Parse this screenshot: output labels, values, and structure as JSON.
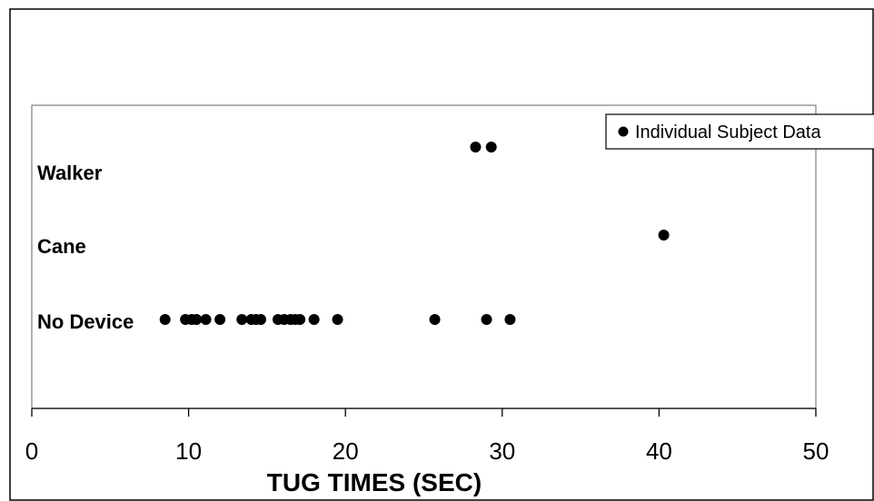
{
  "chart_data": {
    "type": "scatter",
    "title": "",
    "xlabel": "TUG TIMES (SEC)",
    "ylabel": "",
    "xlim": [
      0,
      50
    ],
    "x_ticks": [
      "0",
      "10",
      "20",
      "30",
      "40",
      "50"
    ],
    "categories": [
      "Walker",
      "Cane",
      "No Device"
    ],
    "grid": false,
    "legend_position": "top-right",
    "series": [
      {
        "name": "Individual Subject Data",
        "color": "#000000",
        "points": [
          {
            "category": "Walker",
            "x": 28.3
          },
          {
            "category": "Walker",
            "x": 29.3
          },
          {
            "category": "Cane",
            "x": 40.3
          },
          {
            "category": "No Device",
            "x": 8.5
          },
          {
            "category": "No Device",
            "x": 9.8
          },
          {
            "category": "No Device",
            "x": 10.2
          },
          {
            "category": "No Device",
            "x": 10.5
          },
          {
            "category": "No Device",
            "x": 11.1
          },
          {
            "category": "No Device",
            "x": 12.0
          },
          {
            "category": "No Device",
            "x": 13.4
          },
          {
            "category": "No Device",
            "x": 14.0
          },
          {
            "category": "No Device",
            "x": 14.3
          },
          {
            "category": "No Device",
            "x": 14.6
          },
          {
            "category": "No Device",
            "x": 15.7
          },
          {
            "category": "No Device",
            "x": 16.1
          },
          {
            "category": "No Device",
            "x": 16.5
          },
          {
            "category": "No Device",
            "x": 16.8
          },
          {
            "category": "No Device",
            "x": 17.1
          },
          {
            "category": "No Device",
            "x": 18.0
          },
          {
            "category": "No Device",
            "x": 19.5
          },
          {
            "category": "No Device",
            "x": 25.7
          },
          {
            "category": "No Device",
            "x": 29.0
          },
          {
            "category": "No Device",
            "x": 30.5
          }
        ]
      }
    ]
  }
}
